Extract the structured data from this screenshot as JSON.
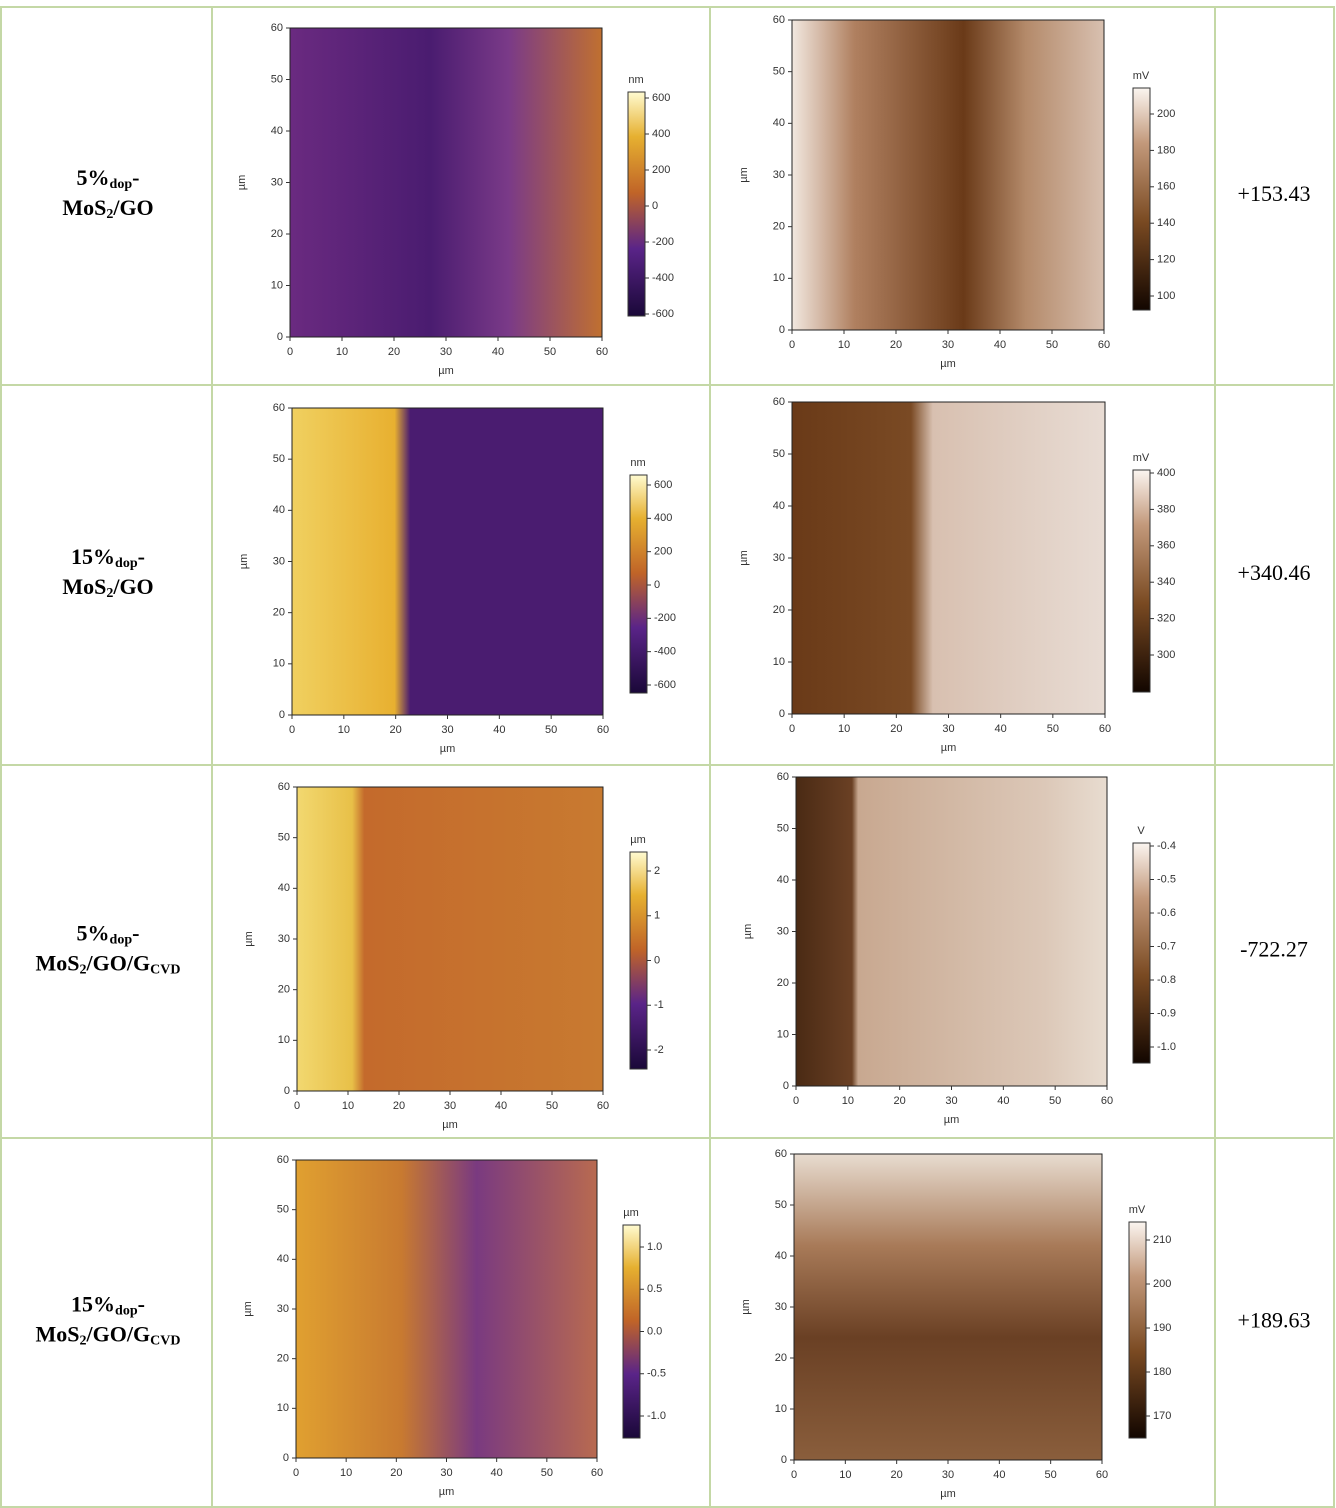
{
  "rows": [
    {
      "sample": [
        [
          "5%",
          "dop",
          "-"
        ],
        [
          "MoS",
          "2",
          "/GO"
        ]
      ],
      "topography": {
        "x_ticks": [
          0,
          10,
          20,
          30,
          40,
          50,
          60
        ],
        "y_ticks": [
          0,
          10,
          20,
          30,
          40,
          50,
          60
        ],
        "x_label": "µm",
        "y_label": "µm",
        "colorbar": {
          "unit": "nm",
          "ticks": [
            600,
            400,
            200,
            0,
            -200,
            -400,
            -600
          ]
        }
      },
      "potential": {
        "x_ticks": [
          0,
          10,
          20,
          30,
          40,
          50,
          60
        ],
        "y_ticks": [
          0,
          10,
          20,
          30,
          40,
          50,
          60
        ],
        "x_label": "µm",
        "y_label": "µm",
        "colorbar": {
          "unit": "mV",
          "ticks": [
            200,
            180,
            160,
            140,
            120,
            100
          ]
        }
      },
      "value": "+153.43"
    },
    {
      "sample": [
        [
          "15%",
          "dop",
          "-"
        ],
        [
          "MoS",
          "2",
          "/GO"
        ]
      ],
      "topography": {
        "x_ticks": [
          0,
          10,
          20,
          30,
          40,
          50,
          60
        ],
        "y_ticks": [
          0,
          10,
          20,
          30,
          40,
          50,
          60
        ],
        "x_label": "µm",
        "y_label": "µm",
        "colorbar": {
          "unit": "nm",
          "ticks": [
            600,
            400,
            200,
            0,
            -200,
            -400,
            -600
          ]
        }
      },
      "potential": {
        "x_ticks": [
          0,
          10,
          20,
          30,
          40,
          50,
          60
        ],
        "y_ticks": [
          0,
          10,
          20,
          30,
          40,
          50,
          60
        ],
        "x_label": "µm",
        "y_label": "µm",
        "colorbar": {
          "unit": "mV",
          "ticks": [
            400,
            380,
            360,
            340,
            320,
            300
          ]
        }
      },
      "value": "+340.46"
    },
    {
      "sample": [
        [
          "5%",
          "dop",
          "-"
        ],
        [
          "MoS",
          "2",
          "/GO/G",
          "CVD"
        ]
      ],
      "topography": {
        "x_ticks": [
          0,
          10,
          20,
          30,
          40,
          50,
          60
        ],
        "y_ticks": [
          0,
          10,
          20,
          30,
          40,
          50,
          60
        ],
        "x_label": "µm",
        "y_label": "µm",
        "colorbar": {
          "unit": "µm",
          "ticks": [
            2,
            1,
            0,
            -1,
            -2
          ]
        }
      },
      "potential": {
        "x_ticks": [
          0,
          10,
          20,
          30,
          40,
          50,
          60
        ],
        "y_ticks": [
          0,
          10,
          20,
          30,
          40,
          50,
          60
        ],
        "x_label": "µm",
        "y_label": "µm",
        "colorbar": {
          "unit": "V",
          "ticks": [
            -0.4,
            -0.5,
            -0.6,
            -0.7,
            -0.8,
            -0.9,
            {
              "value": -1,
              "label": "-1.0"
            }
          ]
        }
      },
      "value": "-722.27"
    },
    {
      "sample": [
        [
          "15%",
          "dop",
          "-"
        ],
        [
          "MoS",
          "2",
          "/GO/G",
          "CVD"
        ]
      ],
      "topography": {
        "x_ticks": [
          0,
          10,
          20,
          30,
          40,
          50,
          60
        ],
        "y_ticks": [
          0,
          10,
          20,
          30,
          40,
          50,
          60
        ],
        "x_label": "µm",
        "y_label": "µm",
        "colorbar": {
          "unit": "µm",
          "ticks": [
            {
              "value": 1,
              "label": "1.0"
            },
            0.5,
            {
              "value": 0,
              "label": "0.0"
            },
            -0.5,
            {
              "value": -1,
              "label": "-1.0"
            }
          ]
        }
      },
      "potential": {
        "x_ticks": [
          0,
          10,
          20,
          30,
          40,
          50,
          60
        ],
        "y_ticks": [
          0,
          10,
          20,
          30,
          40,
          50,
          60
        ],
        "x_label": "µm",
        "y_label": "µm",
        "colorbar": {
          "unit": "mV",
          "ticks": [
            210,
            200,
            190,
            180,
            170
          ]
        }
      },
      "value": "+189.63"
    }
  ]
}
